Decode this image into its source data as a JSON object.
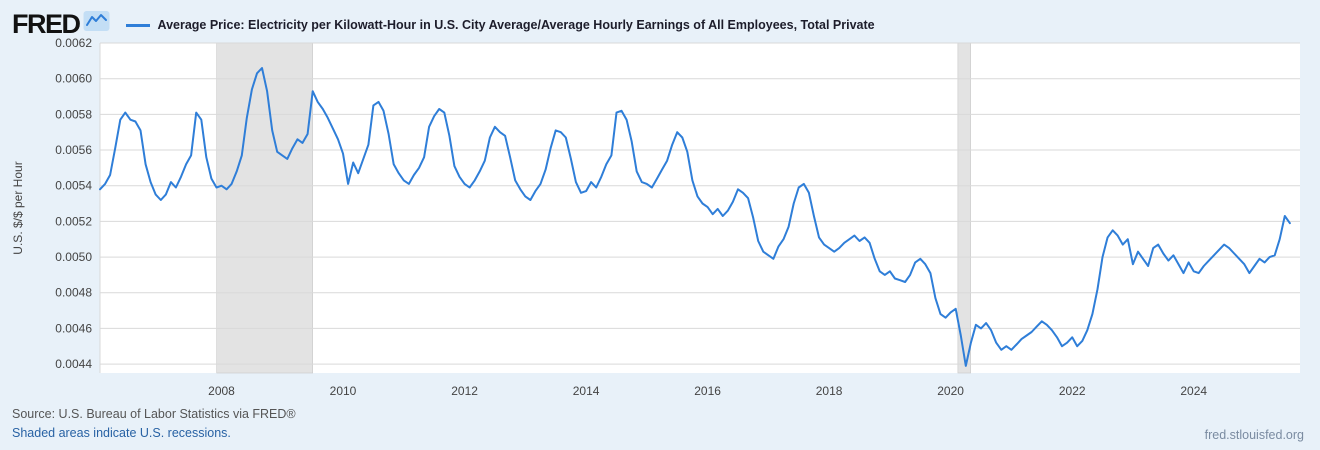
{
  "header": {
    "logo_text": "FRED"
  },
  "legend": {
    "series_label": "Average Price: Electricity per Kilowatt-Hour in U.S. City Average/Average Hourly Earnings of All Employees, Total Private"
  },
  "footer": {
    "source": "Source: U.S. Bureau of Labor Statistics via FRED®",
    "recessions_note": "Shaded areas indicate U.S. recessions.",
    "site_url": "fred.stlouisfed.org"
  },
  "chart_data": {
    "type": "line",
    "title": "Average Price: Electricity per Kilowatt-Hour in U.S. City Average/Average Hourly Earnings of All Employees, Total Private",
    "ylabel": "U.S. $/$ per Hour",
    "xlabel": "",
    "legend_position": "top",
    "grid": "horizontal",
    "x_domain": [
      2006.0,
      2025.75
    ],
    "y_domain": [
      0.00435,
      0.0062
    ],
    "y_ticks": [
      "0.0044",
      "0.0046",
      "0.0048",
      "0.0050",
      "0.0052",
      "0.0054",
      "0.0056",
      "0.0058",
      "0.0060",
      "0.0062"
    ],
    "x_ticks": [
      2008,
      2010,
      2012,
      2014,
      2016,
      2018,
      2020,
      2022,
      2024
    ],
    "recessions": [
      [
        2007.92,
        2009.5
      ],
      [
        2020.12,
        2020.33
      ]
    ],
    "frequency": "monthly",
    "start_year": 2006,
    "scale": 1e-05,
    "values": [
      538,
      541,
      546,
      561,
      577,
      581,
      577,
      576,
      571,
      552,
      542,
      535,
      532,
      535,
      542,
      539,
      545,
      552,
      557,
      581,
      577,
      556,
      544,
      539,
      540,
      538,
      541,
      548,
      557,
      578,
      594,
      603,
      606,
      593,
      571,
      559,
      557,
      555,
      561,
      566,
      564,
      569,
      593,
      587,
      583,
      578,
      572,
      566,
      558,
      541,
      553,
      547,
      555,
      563,
      585,
      587,
      582,
      569,
      552,
      547,
      543,
      541,
      546,
      550,
      556,
      573,
      579,
      583,
      581,
      568,
      551,
      545,
      541,
      539,
      543,
      548,
      554,
      567,
      573,
      570,
      568,
      556,
      543,
      538,
      534,
      532,
      537,
      541,
      549,
      561,
      571,
      570,
      567,
      555,
      542,
      536,
      537,
      542,
      539,
      545,
      552,
      557,
      581,
      582,
      577,
      565,
      548,
      542,
      541,
      539,
      544,
      549,
      554,
      563,
      570,
      567,
      559,
      543,
      534,
      530,
      528,
      524,
      527,
      523,
      526,
      531,
      538,
      536,
      533,
      522,
      509,
      503,
      501,
      499,
      506,
      510,
      517,
      530,
      539,
      541,
      536,
      523,
      511,
      507,
      505,
      503,
      505,
      508,
      510,
      512,
      509,
      511,
      508,
      499,
      492,
      490,
      492,
      488,
      487,
      486,
      490,
      497,
      499,
      496,
      491,
      477,
      468,
      466,
      469,
      471,
      456,
      439,
      452,
      462,
      460,
      463,
      459,
      452,
      448,
      450,
      448,
      451,
      454,
      456,
      458,
      461,
      464,
      462,
      459,
      455,
      450,
      452,
      455,
      450,
      453,
      459,
      468,
      482,
      500,
      511,
      515,
      512,
      507,
      510,
      496,
      503,
      499,
      495,
      505,
      507,
      502,
      498,
      501,
      496,
      491,
      497,
      492,
      491,
      495,
      498,
      501,
      504,
      507,
      505,
      502,
      499,
      496,
      491,
      495,
      499,
      497,
      500,
      501,
      510,
      523,
      519
    ],
    "colors": {
      "line": "#2f7ed8",
      "grid": "#d9d9d9",
      "recession": "#e3e3e3",
      "recession_edge": "#c9c9c9",
      "plot_background": "#ffffff",
      "page_background": "#e8f1f9",
      "link": "#2862a4"
    }
  }
}
